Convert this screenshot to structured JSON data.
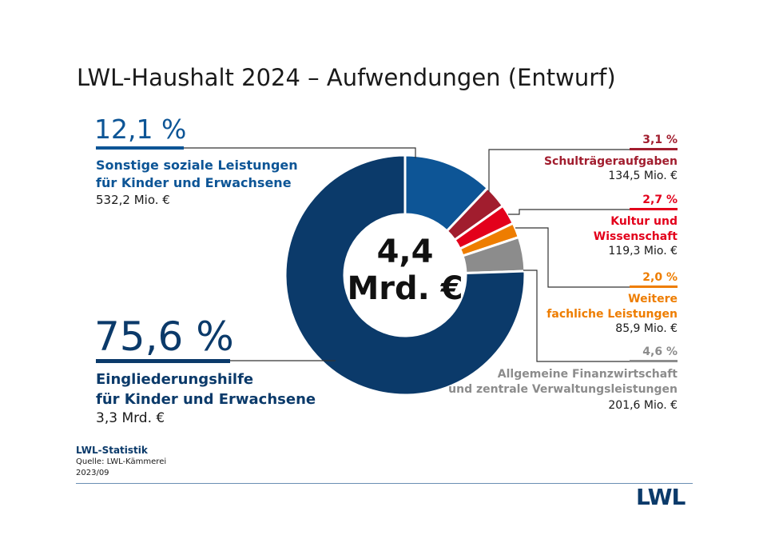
{
  "title": "LWL-Haushalt 2024 – Aufwendungen (Entwurf)",
  "colors": {
    "navy": "#0b3a6a",
    "blue": "#0d5596",
    "darkred": "#a11d2e",
    "red": "#e3001b",
    "orange": "#ee7d00",
    "gray": "#8c8c8c"
  },
  "center": {
    "value": "4,4",
    "unit": "Mrd. €"
  },
  "segments": [
    {
      "pct": "12,1 %",
      "name1": "Sonstige soziale Leistungen",
      "name2": "für Kinder und Erwachsene",
      "amount": "532,2 Mio. €"
    },
    {
      "pct": "3,1 %",
      "name1": "Schulträgeraufgaben",
      "name2": "",
      "amount": "134,5 Mio. €"
    },
    {
      "pct": "2,7 %",
      "name1": "Kultur und",
      "name2": "Wissenschaft",
      "amount": "119,3 Mio. €"
    },
    {
      "pct": "2,0 %",
      "name1": "Weitere",
      "name2": "fachliche Leistungen",
      "amount": "85,9 Mio. €"
    },
    {
      "pct": "4,6 %",
      "name1": "Allgemeine Finanzwirtschaft",
      "name2": "und zentrale Verwaltungsleistungen",
      "amount": "201,6 Mio. €"
    },
    {
      "pct": "75,6 %",
      "name1": "Eingliederungshilfe",
      "name2": "für Kinder und Erwachsene",
      "amount": "3,3 Mrd. €"
    }
  ],
  "chart_data": {
    "type": "pie",
    "title": "LWL-Haushalt 2024 – Aufwendungen (Entwurf)",
    "categories": [
      "Sonstige soziale Leistungen für Kinder und Erwachsene",
      "Schulträgeraufgaben",
      "Kultur und Wissenschaft",
      "Weitere fachliche Leistungen",
      "Allgemeine Finanzwirtschaft und zentrale Verwaltungsleistungen",
      "Eingliederungshilfe für Kinder und Erwachsene"
    ],
    "values": [
      12.1,
      3.1,
      2.7,
      2.0,
      4.6,
      75.6
    ],
    "amounts": [
      "532,2 Mio. €",
      "134,5 Mio. €",
      "119,3 Mio. €",
      "85,9 Mio. €",
      "201,6 Mio. €",
      "3,3 Mrd. €"
    ],
    "total": "4,4 Mrd. €",
    "colors": [
      "#0d5596",
      "#a11d2e",
      "#e3001b",
      "#ee7d00",
      "#8c8c8c",
      "#0b3a6a"
    ]
  },
  "footer": {
    "title": "LWL-Statistik",
    "source": "Quelle:  LWL-Kämmerei",
    "date": "2023/09",
    "logo": "LWL"
  }
}
